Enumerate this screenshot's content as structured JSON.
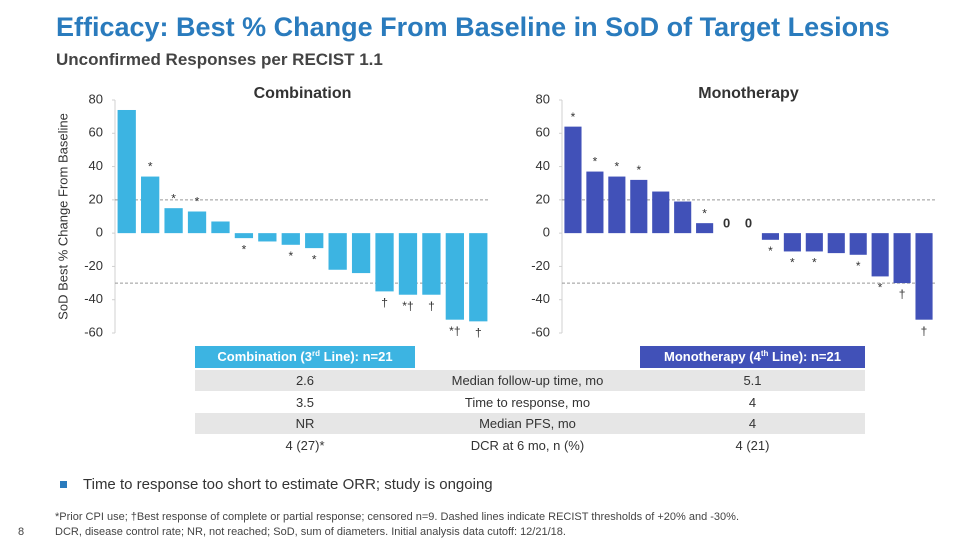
{
  "header": {
    "title": "Efficacy: Best % Change From Baseline in SoD of Target Lesions",
    "subtitle": "Unconfirmed Responses per RECIST 1.1"
  },
  "chart_data": [
    {
      "type": "bar",
      "title": "Combination",
      "y_label": "SoD Best % Change From Baseline",
      "color": "#3cb4e2",
      "categories": [
        null,
        null,
        null,
        null,
        null,
        null,
        null,
        null,
        null,
        null,
        null,
        null,
        null,
        null,
        null,
        null
      ],
      "values": [
        74,
        34,
        15,
        13,
        7,
        -3,
        -5,
        -7,
        -9,
        -22,
        -24,
        -35,
        -37,
        -37,
        -52,
        -53
      ],
      "markers": [
        null,
        "*",
        "*",
        "*",
        null,
        "*",
        null,
        "*",
        "*",
        null,
        null,
        "†",
        "*†",
        "†",
        "*†",
        "†"
      ],
      "ylim": [
        -60,
        80
      ],
      "yticks": [
        -60,
        -40,
        -20,
        0,
        20,
        40,
        60,
        80
      ],
      "thresholds": [
        20,
        -30
      ],
      "grid": false
    },
    {
      "type": "bar",
      "title": "Monotherapy",
      "color": "#4151b8",
      "categories": [
        null,
        null,
        null,
        null,
        null,
        null,
        null,
        null,
        null,
        null,
        null,
        null,
        null,
        null,
        null,
        null,
        null
      ],
      "values": [
        64,
        37,
        34,
        32,
        25,
        19,
        6,
        0,
        0,
        -4,
        -11,
        -11,
        -12,
        -13,
        -26,
        -30,
        -52
      ],
      "markers": [
        "*",
        "*",
        "*",
        "*",
        null,
        null,
        "*",
        null,
        null,
        "*",
        "*",
        "*",
        null,
        "*",
        "*",
        "†",
        "†"
      ],
      "ylim": [
        -60,
        80
      ],
      "yticks": [
        -60,
        -40,
        -20,
        0,
        20,
        40,
        60,
        80
      ],
      "thresholds": [
        20,
        -30
      ],
      "grid": false
    }
  ],
  "table": {
    "header": [
      {
        "text": "Combination (3",
        "sup": "rd",
        "rest": " Line): n=21"
      },
      {
        "text": "Monotherapy (4",
        "sup": "th",
        "rest": " Line): n=21"
      }
    ],
    "rows": [
      [
        "2.6",
        "Median follow-up time, mo",
        "5.1"
      ],
      [
        "3.5",
        "Time to response, mo",
        "4"
      ],
      [
        "NR",
        "Median PFS, mo",
        "4"
      ],
      [
        "4 (27)*",
        "DCR at 6 mo, n (%)",
        "4 (21)"
      ]
    ]
  },
  "bullet": "Time to response too short to estimate ORR; study is ongoing",
  "footnotes": [
    "*Prior CPI use; †Best response of complete or partial response; censored n=9. Dashed lines indicate RECIST thresholds of +20% and -30%.",
    "DCR, disease control rate; NR, not reached; SoD, sum of diameters. Initial analysis data cutoff: 12/21/18."
  ],
  "page_number": "8"
}
